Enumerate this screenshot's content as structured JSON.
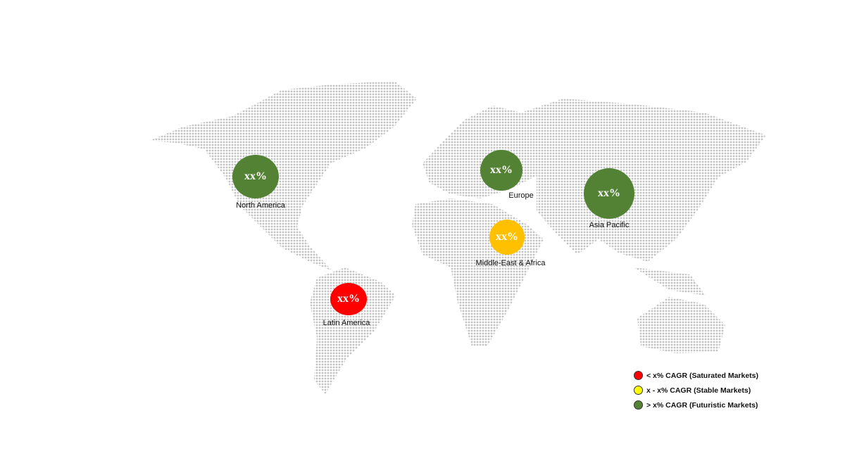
{
  "regions": [
    {
      "name": "North America",
      "value": "xx%",
      "color": "#548235"
    },
    {
      "name": "Europe",
      "value": "xx%",
      "color": "#548235"
    },
    {
      "name": "Asia Pacific",
      "value": "xx%",
      "color": "#548235"
    },
    {
      "name": "Middle-East & Africa",
      "value": "xx%",
      "color": "#ffc000"
    },
    {
      "name": "Latin America",
      "value": "xx%",
      "color": "#ff0000"
    }
  ],
  "legend": [
    {
      "label": "< x% CAGR (Saturated Markets)",
      "color": "#ff0000"
    },
    {
      "label": "x - x% CAGR (Stable Markets)",
      "color": "#ffff00"
    },
    {
      "label": "> x% CAGR (Futuristic Markets)",
      "color": "#548235"
    }
  ]
}
